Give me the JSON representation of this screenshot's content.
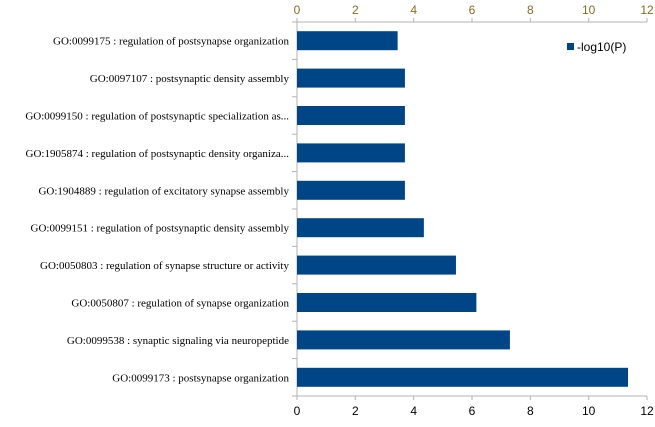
{
  "chart_data": {
    "type": "bar",
    "orientation": "horizontal",
    "title": "",
    "xlabel": "",
    "ylabel": "",
    "xlim": [
      0,
      12
    ],
    "x_ticks": [
      0,
      2,
      4,
      6,
      8,
      10,
      12
    ],
    "x_axis_positions": [
      "top",
      "bottom"
    ],
    "grid": false,
    "legend_position": "top-right",
    "categories": [
      "GO:0099175 : regulation of postsynapse organization",
      "GO:0097107 : postsynaptic density assembly",
      "GO:0099150 : regulation of postsynaptic specialization as...",
      "GO:1905874 : regulation of postsynaptic density organiza...",
      "GO:1904889 : regulation of excitatory synapse assembly",
      "GO:0099151 : regulation of postsynaptic density assembly",
      "GO:0050803 : regulation of synapse structure or activity",
      "GO:0050807 : regulation of synapse organization",
      "GO:0099538 : synaptic signaling via neuropeptide",
      "GO:0099173 : postsynapse organization"
    ],
    "series": [
      {
        "name": "-log10(P)",
        "color": "#004586",
        "values": [
          3.45,
          3.7,
          3.7,
          3.7,
          3.7,
          4.35,
          5.45,
          6.15,
          7.3,
          11.35
        ]
      }
    ]
  }
}
